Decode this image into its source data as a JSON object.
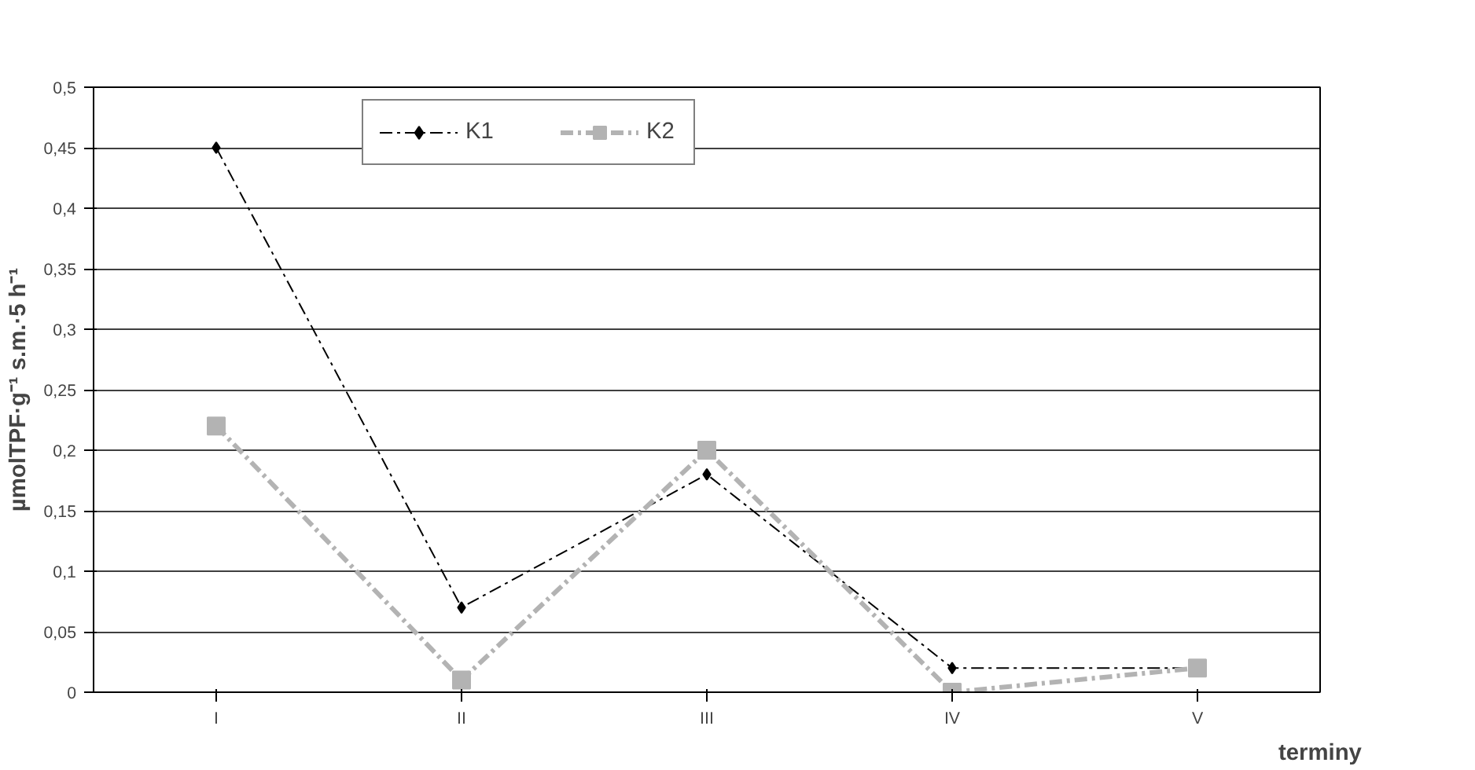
{
  "chart_data": {
    "type": "line",
    "xlabel": "terminy",
    "ylabel": "µmolTPF·g⁻¹ s.m.·5 h⁻¹",
    "categories": [
      "I",
      "II",
      "III",
      "IV",
      "V"
    ],
    "series": [
      {
        "name": "K1",
        "color": "#000000",
        "values": [
          0.45,
          0.07,
          0.18,
          0.02,
          0.02
        ],
        "marker": "diamond",
        "line_style": "dashed"
      },
      {
        "name": "K2",
        "color": "#b3b3b3",
        "values": [
          0.22,
          0.01,
          0.2,
          0.0,
          0.02
        ],
        "marker": "square",
        "line_style": "dashed"
      }
    ],
    "ylim": [
      0,
      0.5
    ],
    "yticks": [
      {
        "value": 0,
        "label": "0"
      },
      {
        "value": 0.05,
        "label": "0,05"
      },
      {
        "value": 0.1,
        "label": "0,1"
      },
      {
        "value": 0.15,
        "label": "0,15"
      },
      {
        "value": 0.2,
        "label": "0,2"
      },
      {
        "value": 0.25,
        "label": "0,25"
      },
      {
        "value": 0.3,
        "label": "0,3"
      },
      {
        "value": 0.35,
        "label": "0,35"
      },
      {
        "value": 0.4,
        "label": "0,4"
      },
      {
        "value": 0.45,
        "label": "0,45"
      },
      {
        "value": 0.5,
        "label": "0,5"
      }
    ],
    "grid": "y",
    "legend": "top left"
  }
}
